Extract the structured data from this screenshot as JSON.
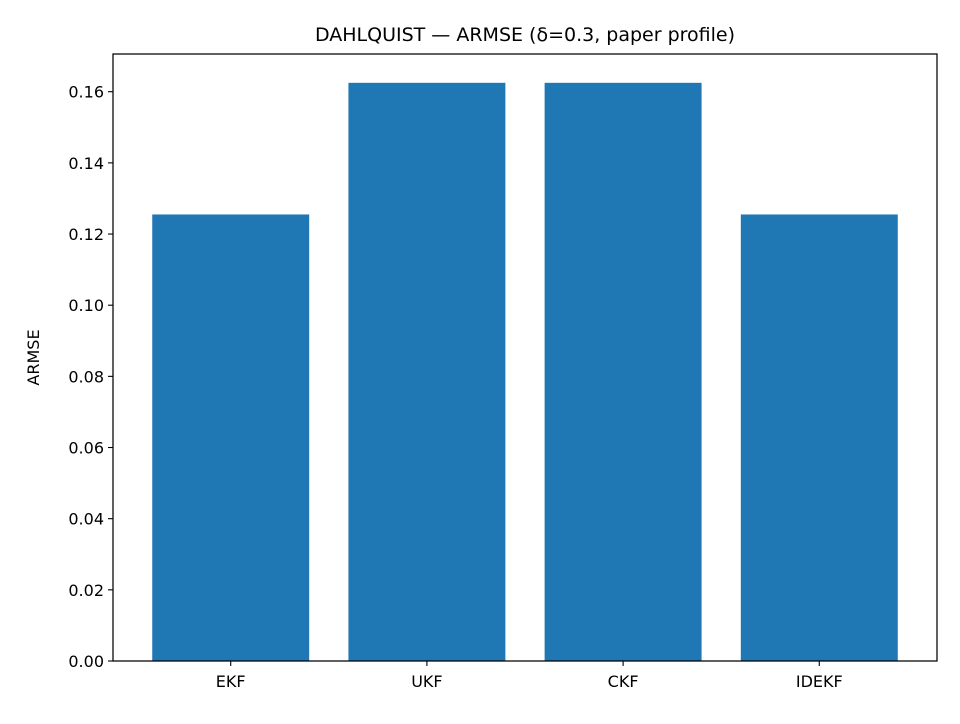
{
  "chart_data": {
    "type": "bar",
    "title": "DAHLQUIST — ARMSE (δ=0.3, paper profile)",
    "xlabel": "",
    "ylabel": "ARMSE",
    "categories": [
      "EKF",
      "UKF",
      "CKF",
      "IDEKF"
    ],
    "values": [
      0.1255,
      0.1625,
      0.1625,
      0.1255
    ],
    "ylim": [
      0,
      0.1706
    ],
    "yticks": [
      0.0,
      0.02,
      0.04,
      0.06,
      0.08,
      0.1,
      0.12,
      0.14,
      0.16
    ],
    "ytick_labels": [
      "0.00",
      "0.02",
      "0.04",
      "0.06",
      "0.08",
      "0.10",
      "0.12",
      "0.14",
      "0.16"
    ],
    "bar_color": "#1f77b4",
    "grid": false,
    "legend": "none"
  }
}
